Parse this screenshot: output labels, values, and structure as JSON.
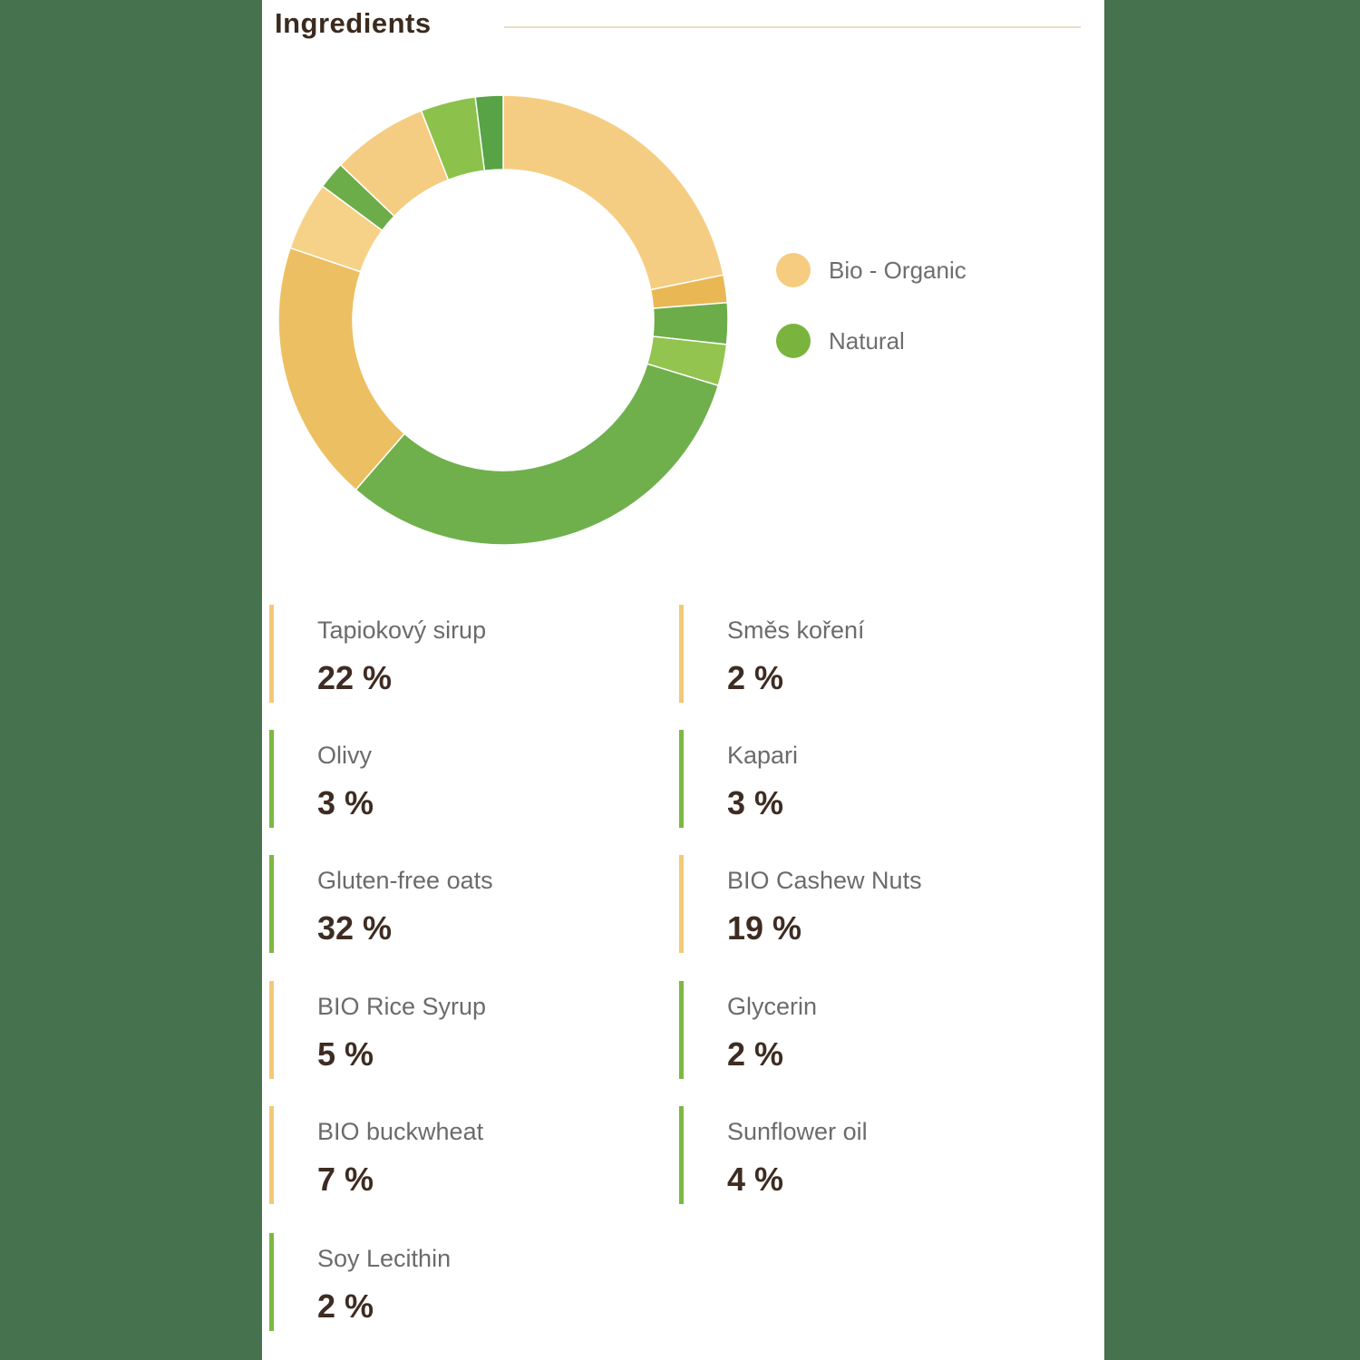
{
  "header": {
    "title": "Ingredients"
  },
  "legend": {
    "items": [
      {
        "label": "Bio - Organic",
        "color": "#F5CC80"
      },
      {
        "label": "Natural",
        "color": "#7AB43E"
      }
    ]
  },
  "chart_data": {
    "type": "pie",
    "subtype": "donut",
    "title": "Ingredients",
    "legend_position": "right",
    "start_angle_deg": -90,
    "direction": "clockwise",
    "inner_radius_ratio": 0.67,
    "unit": "%",
    "slices": [
      {
        "label": "Tapiokový sirup",
        "value": 22,
        "category": "bio",
        "color": "#F5CD82"
      },
      {
        "label": "Směs koření",
        "value": 2,
        "category": "bio",
        "color": "#E9B855"
      },
      {
        "label": "Olivy",
        "value": 3,
        "category": "natural",
        "color": "#6CAD4A"
      },
      {
        "label": "Kapari",
        "value": 3,
        "category": "natural",
        "color": "#93C44F"
      },
      {
        "label": "Gluten-free oats",
        "value": 32,
        "category": "natural",
        "color": "#6FB04D"
      },
      {
        "label": "BIO Cashew Nuts",
        "value": 19,
        "category": "bio",
        "color": "#ECBF62"
      },
      {
        "label": "BIO Rice Syrup",
        "value": 5,
        "category": "bio",
        "color": "#F6D288"
      },
      {
        "label": "Glycerin",
        "value": 2,
        "category": "natural",
        "color": "#6CAD4A"
      },
      {
        "label": "BIO buckwheat",
        "value": 7,
        "category": "bio",
        "color": "#F5CD82"
      },
      {
        "label": "Sunflower oil",
        "value": 4,
        "category": "natural",
        "color": "#8CC24B"
      },
      {
        "label": "Soy Lecithin",
        "value": 2,
        "category": "natural",
        "color": "#57A346"
      }
    ]
  },
  "ingredients": {
    "items": [
      {
        "name": "Tapiokový sirup",
        "value_label": "22 %",
        "category": "bio"
      },
      {
        "name": "Směs koření",
        "value_label": "2 %",
        "category": "bio"
      },
      {
        "name": "Olivy",
        "value_label": "3 %",
        "category": "natural"
      },
      {
        "name": "Kapari",
        "value_label": "3 %",
        "category": "natural"
      },
      {
        "name": "Gluten-free oats",
        "value_label": "32 %",
        "category": "natural"
      },
      {
        "name": "BIO Cashew Nuts",
        "value_label": "19 %",
        "category": "bio"
      },
      {
        "name": "BIO Rice Syrup",
        "value_label": "5 %",
        "category": "bio"
      },
      {
        "name": "Glycerin",
        "value_label": "2 %",
        "category": "natural"
      },
      {
        "name": "BIO buckwheat",
        "value_label": "7 %",
        "category": "bio"
      },
      {
        "name": "Sunflower oil",
        "value_label": "4 %",
        "category": "natural"
      },
      {
        "name": "Soy Lecithin",
        "value_label": "2 %",
        "category": "natural"
      }
    ]
  },
  "colors": {
    "page_background": "#47724E",
    "card_background": "#FFFFFF",
    "title_text": "#3B2A1E",
    "divider": "#E9DDC3",
    "label_text": "#6B6B6B",
    "value_text": "#3E2C22",
    "bar_bio": "#F2C977",
    "bar_natural": "#7CB843",
    "slice_border": "#FFFFFF"
  }
}
